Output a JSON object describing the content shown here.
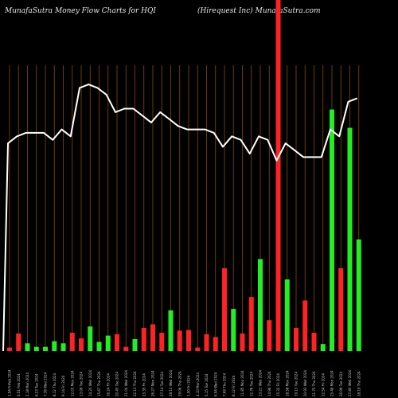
{
  "header": {
    "left": "MunafaSutra  Money Flow  Charts for HQI",
    "right": "(Hirequest Inc) MunafaSutra.com"
  },
  "colors": {
    "background": "#000000",
    "grid": "#8a4a00",
    "up": "#22ee22",
    "down": "#ff2222",
    "line": "#ffffff"
  },
  "chart_data": {
    "type": "bar",
    "grid": "vertical lines",
    "categories": [
      "1 Feb 2024",
      "2 Feb 2024",
      "5 Feb 2024",
      "6 Feb 2024",
      "7 Feb 2024",
      "8 Feb 2024",
      "9 Feb 2024",
      "12 Feb 2024",
      "13 Feb 2024",
      "14 Feb 2024",
      "15 Feb 2024",
      "16 Feb 2024",
      "20 Feb 2024",
      "21 Feb 2024",
      "22 Feb 2024",
      "23 Feb 2024",
      "26 Feb 2024",
      "27 Feb 2024",
      "28 Feb 2024",
      "29 Feb 2024",
      "1 Mar 2024",
      "4 Mar 2024",
      "5 Mar 2024",
      "6 Mar 2024",
      "7 Mar 2024",
      "8 Mar 2024",
      "11 Mar 2024",
      "12 Mar 2024",
      "13 Mar 2024",
      "14 Mar 2024",
      "15 Mar 2024",
      "18 Mar 2024",
      "19 Mar 2024",
      "20 Mar 2024",
      "21 Mar 2024",
      "22 Mar 2024",
      "25 Mar 2024",
      "26 Mar 2024",
      "27 Mar 2024",
      "28 Mar 2024",
      "1 Apr 2024",
      "2 Apr 2024",
      "3 Apr 2024",
      "4 Apr 2024",
      "5 Apr 2024",
      "8 Apr 2024",
      "9 Apr 2024"
    ],
    "tick_labels": [
      "1.94 FriFeb 2024",
      "5.51 Feb 2024",
      "2.18 Mon 2024",
      "6.23 Tue 2024",
      "7.36 Wed 2024",
      "8.12 Thu 2024",
      "9.14 Fri 2024",
      "12.03 Mon 2024",
      "13.09 Tue 2024",
      "14.20 Wed 2024",
      "15.67 Thu 2024",
      "16.24 Fri 2024",
      "20.45 Tue 2024",
      "21.04 Wed 2024",
      "22.13 Thu 2024",
      "23.35 Fri 2024",
      "26.27 Mon 2024",
      "27.14 Tue 2024",
      "28.13 Wed 2024",
      "29.06 Thu 2024",
      "1.50 Fri 2024",
      "4.10 Mon 2024",
      "5.15 Tue 2024",
      "6.94 Wed 2024",
      "7.69 Thu 2024",
      "8.12 Fri 2024",
      "11.85 Mon 2024",
      "12.76 Tue 2024",
      "13.21 Wed 2024",
      "14.96 Thu 2024",
      "15.32 Fri 2024",
      "18.58 Mon 2024",
      "19.13 Tue 2024",
      "20.93 Wed 2024",
      "21.75 Thu 2024",
      "22.54 Fri 2024",
      "25.46 Mon 2024",
      "26.99 Tue 2024",
      "27.83 Wed 2024",
      "28.19 Thu 2024",
      "1.44 Mon 2024",
      "2.91 Tue 2024",
      "3.66 Wed 2024",
      "4.07 Thu 2024",
      "5.50 Fri 2024",
      "8.39 Mon 2024",
      "9.10 Tue 2024"
    ],
    "bar_values": [
      5,
      25,
      11,
      6,
      6,
      14,
      11,
      26,
      18,
      35,
      13,
      22,
      24,
      6,
      17,
      33,
      38,
      26,
      58,
      29,
      30,
      5,
      24,
      20,
      118,
      60,
      25,
      77,
      131,
      44,
      500,
      102,
      33,
      72,
      26,
      10,
      344,
      118,
      318,
      159,
      0,
      0,
      0,
      0,
      0,
      0,
      0
    ],
    "bar_direction": [
      "down",
      "down",
      "up",
      "up",
      "up",
      "up",
      "up",
      "down",
      "down",
      "up",
      "up",
      "up",
      "down",
      "down",
      "up",
      "down",
      "down",
      "down",
      "up",
      "down",
      "down",
      "down",
      "down",
      "down",
      "down",
      "up",
      "down",
      "down",
      "up",
      "down",
      "down",
      "up",
      "down",
      "down",
      "down",
      "up",
      "up",
      "down",
      "up",
      "up",
      "up",
      "up",
      "up",
      "up",
      "up",
      "up",
      "up"
    ],
    "line_values": [
      60,
      62,
      63,
      63,
      63,
      61,
      64,
      62,
      76,
      77,
      76,
      74,
      69,
      70,
      70,
      68,
      66,
      69,
      67,
      65,
      64,
      64,
      64,
      63,
      59,
      62,
      61,
      57,
      62,
      61,
      55,
      60,
      58,
      56,
      56,
      56,
      64,
      62,
      72,
      73,
      0,
      0,
      0,
      0,
      0,
      0,
      0
    ],
    "bar_ylim": [
      0,
      500
    ],
    "line_ylim": [
      0,
      100
    ]
  }
}
